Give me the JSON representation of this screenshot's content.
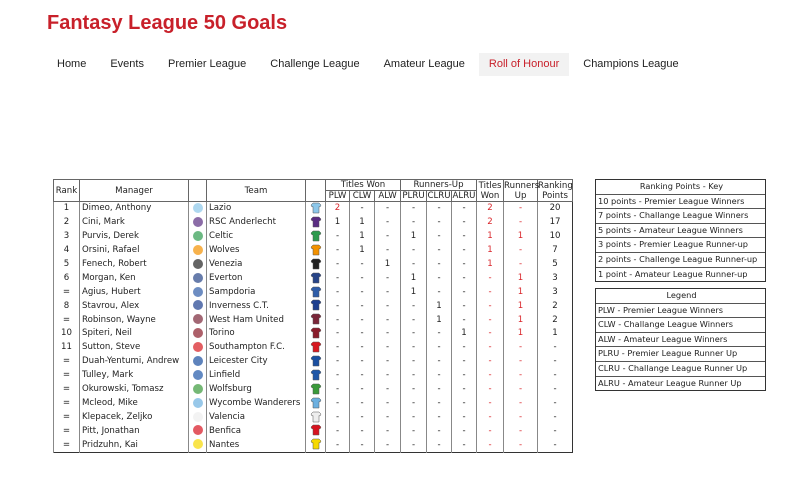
{
  "header": {
    "title": "Fantasy League 50 Goals"
  },
  "nav": {
    "items": [
      "Home",
      "Events",
      "Premier League",
      "Challenge League",
      "Amateur League",
      "Roll of Honour",
      "Champions League"
    ],
    "active": 5
  },
  "table": {
    "columns": {
      "rank": "Rank",
      "manager": "Manager",
      "team": "Team",
      "titles_won_group": "Titles Won",
      "runners_up_group": "Runners-Up",
      "titles_won": "Titles Won",
      "runners_up": "Runners Up",
      "ranking_points": "Ranking Points"
    },
    "subcolumns": [
      "PLW",
      "CLW",
      "ALW",
      "PLRU",
      "CLRU",
      "ALRU"
    ],
    "rows": [
      [
        "1",
        "Dimeo, Anthony",
        "Lazio",
        "2",
        "-",
        "-",
        "-",
        "-",
        "-",
        "2",
        "-",
        "20"
      ],
      [
        "2",
        "Cini, Mark",
        "RSC Anderlecht",
        "1",
        "1",
        "-",
        "-",
        "-",
        "-",
        "2",
        "-",
        "17"
      ],
      [
        "3",
        "Purvis, Derek",
        "Celtic",
        "-",
        "1",
        "-",
        "1",
        "-",
        "-",
        "1",
        "1",
        "10"
      ],
      [
        "4",
        "Orsini, Rafael",
        "Wolves",
        "-",
        "1",
        "-",
        "-",
        "-",
        "-",
        "1",
        "-",
        "7"
      ],
      [
        "5",
        "Fenech, Robert",
        "Venezia",
        "-",
        "-",
        "1",
        "-",
        "-",
        "-",
        "1",
        "-",
        "5"
      ],
      [
        "6",
        "Morgan, Ken",
        "Everton",
        "-",
        "-",
        "-",
        "1",
        "-",
        "-",
        "-",
        "1",
        "3"
      ],
      [
        "=",
        "Agius, Hubert",
        "Sampdoria",
        "-",
        "-",
        "-",
        "1",
        "-",
        "-",
        "-",
        "1",
        "3"
      ],
      [
        "8",
        "Stavrou, Alex",
        "Inverness C.T.",
        "-",
        "-",
        "-",
        "-",
        "1",
        "-",
        "-",
        "1",
        "2"
      ],
      [
        "=",
        "Robinson, Wayne",
        "West Ham United",
        "-",
        "-",
        "-",
        "-",
        "1",
        "-",
        "-",
        "1",
        "2"
      ],
      [
        "10",
        "Spiteri, Neil",
        "Torino",
        "-",
        "-",
        "-",
        "-",
        "-",
        "1",
        "-",
        "1",
        "1"
      ],
      [
        "11",
        "Sutton, Steve",
        "Southampton F.C.",
        "-",
        "-",
        "-",
        "-",
        "-",
        "-",
        "-",
        "-",
        "-"
      ],
      [
        "=",
        "Duah-Yentumi, Andrew",
        "Leicester City",
        "-",
        "-",
        "-",
        "-",
        "-",
        "-",
        "-",
        "-",
        "-"
      ],
      [
        "=",
        "Tulley, Mark",
        "Linfield",
        "-",
        "-",
        "-",
        "-",
        "-",
        "-",
        "-",
        "-",
        "-"
      ],
      [
        "=",
        "Okurowski, Tomasz",
        "Wolfsburg",
        "-",
        "-",
        "-",
        "-",
        "-",
        "-",
        "-",
        "-",
        "-"
      ],
      [
        "=",
        "Mcleod, Mike",
        "Wycombe Wanderers",
        "-",
        "-",
        "-",
        "-",
        "-",
        "-",
        "-",
        "-",
        "-"
      ],
      [
        "=",
        "Klepacek, Zeljko",
        "Valencia",
        "-",
        "-",
        "-",
        "-",
        "-",
        "-",
        "-",
        "-",
        "-"
      ],
      [
        "=",
        "Pitt, Jonathan",
        "Benfica",
        "-",
        "-",
        "-",
        "-",
        "-",
        "-",
        "-",
        "-",
        "-"
      ],
      [
        "=",
        "Pridzuhn, Kai",
        "Nantes",
        "-",
        "-",
        "-",
        "-",
        "-",
        "-",
        "-",
        "-",
        "-"
      ]
    ]
  },
  "key": {
    "title": "Ranking Points - Key",
    "items": [
      "10 points - Premier League Winners",
      "7 points - Challange League Winners",
      "5 points - Amateur League Winners",
      "3 points - Premier League Runner-up",
      "2 points - Challenge League Runner-up",
      "1 point - Amateur League Runner-up"
    ]
  },
  "legend": {
    "title": "Legend",
    "items": [
      "PLW - Premier League Winners",
      "CLW - Challange League Winners",
      "ALW - Amateur League Winners",
      "PLRU - Premier League Runner Up",
      "CLRU - Challange League Runner Up",
      "ALRU - Amateur League Runner Up"
    ]
  }
}
